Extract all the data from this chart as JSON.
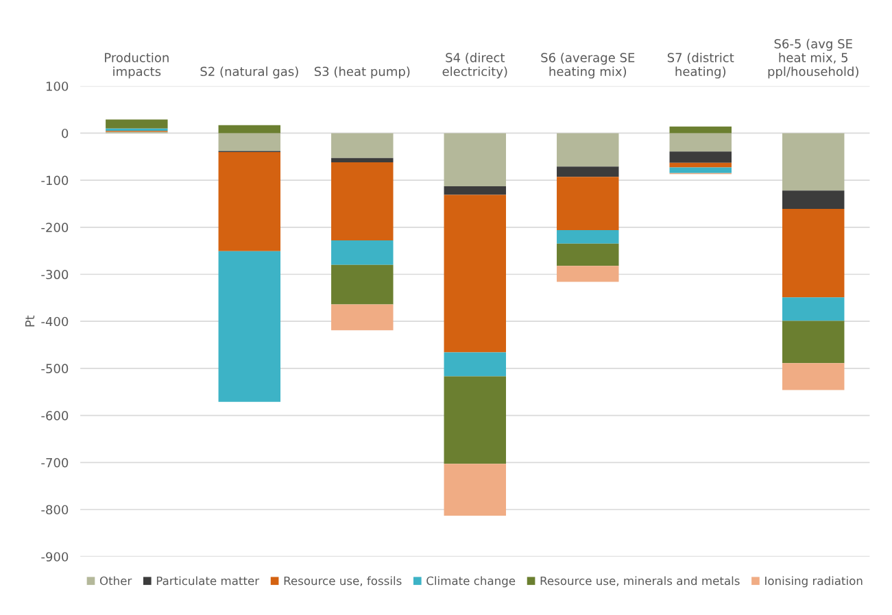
{
  "chart_data": {
    "type": "bar",
    "stacked": true,
    "ylabel": "Pt",
    "categories": [
      "Production\nimpacts",
      "S2 (natural gas)",
      "S3 (heat pump)",
      "S4 (direct\nelectricity)",
      "S6 (average SE\nheating mix)",
      "S7 (district\nheating)",
      "S6-5 (avg SE\nheat mix, 5\nppl/household)"
    ],
    "series": [
      {
        "name": "Other",
        "color": "#b4b89a",
        "values": [
          3,
          -38,
          -53,
          -113,
          -71,
          -39,
          -122
        ]
      },
      {
        "name": "Particulate matter",
        "color": "#3c3c3c",
        "values": [
          null,
          -2,
          -9,
          -18,
          -22,
          -24,
          -39
        ]
      },
      {
        "name": "Resource use, fossils",
        "color": "#d46211",
        "values": [
          2,
          -211,
          -166,
          -335,
          -113,
          -10,
          -188
        ]
      },
      {
        "name": "Climate change",
        "color": "#3db3c6",
        "values": [
          5,
          -320,
          -52,
          -51,
          -29,
          -12,
          -50
        ]
      },
      {
        "name": "Resource use, minerals and metals",
        "color": "#6b7f30",
        "values": [
          19,
          17,
          -84,
          -186,
          -47,
          14,
          -90
        ]
      },
      {
        "name": "Ionising radiation",
        "color": "#f0ac84",
        "values": [
          0,
          0,
          -55,
          -110,
          -34,
          -2,
          -57
        ]
      }
    ],
    "ylim": [
      -900,
      100
    ],
    "yticks": [
      -900,
      -800,
      -700,
      -600,
      -500,
      -400,
      -300,
      -200,
      -100,
      0,
      100
    ],
    "grid": "y",
    "legend": "bottom"
  }
}
